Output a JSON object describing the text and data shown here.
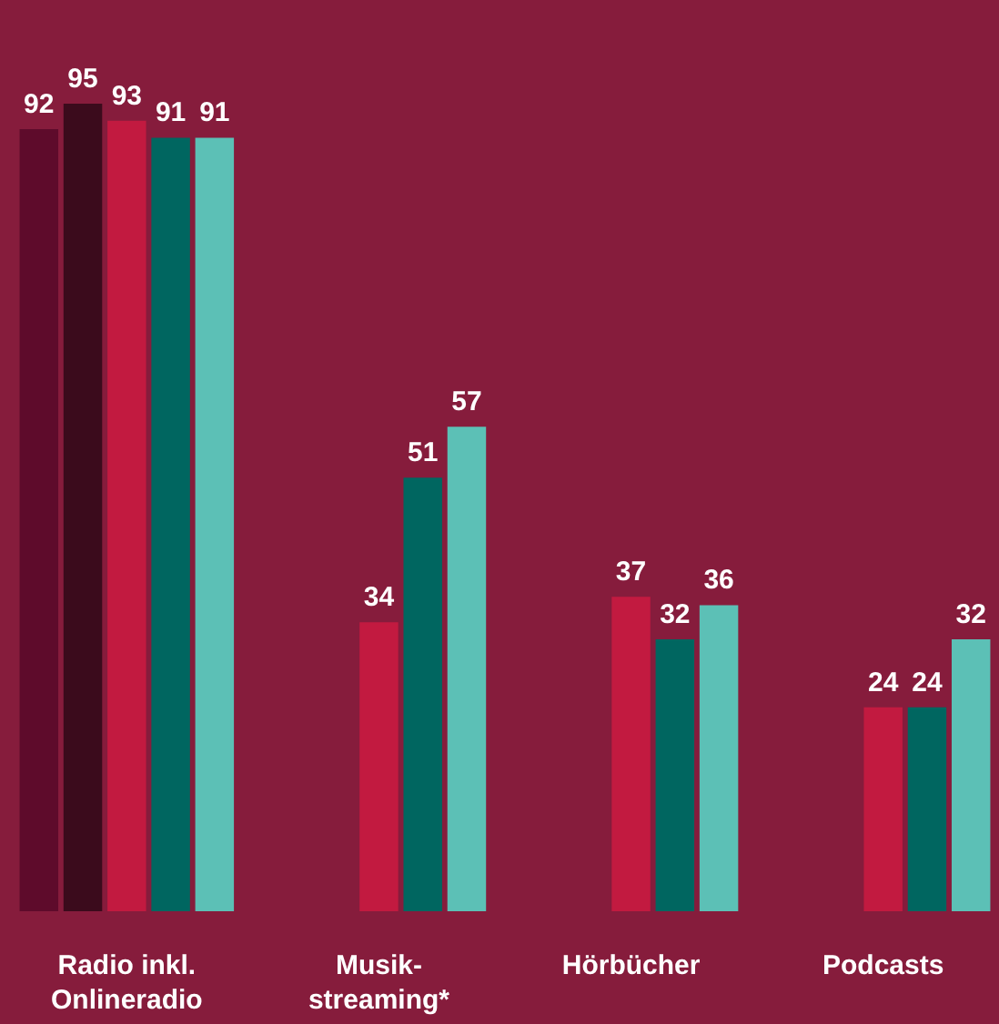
{
  "chart_data": {
    "type": "bar",
    "categories": [
      "Radio inkl.\nOnlineradio",
      "Musik-\nstreaming*",
      "Hörbücher",
      "Podcasts"
    ],
    "series": [
      {
        "color": "#5e0b2b",
        "values": [
          92,
          null,
          null,
          null
        ]
      },
      {
        "color": "#3b0b1c",
        "values": [
          95,
          null,
          null,
          null
        ]
      },
      {
        "color": "#c21a40",
        "values": [
          93,
          34,
          37,
          24
        ]
      },
      {
        "color": "#006660",
        "values": [
          91,
          51,
          32,
          24
        ]
      },
      {
        "color": "#5cc0b6",
        "values": [
          91,
          57,
          36,
          32
        ]
      }
    ],
    "data_labels": true,
    "legend": false,
    "grid": false
  }
}
